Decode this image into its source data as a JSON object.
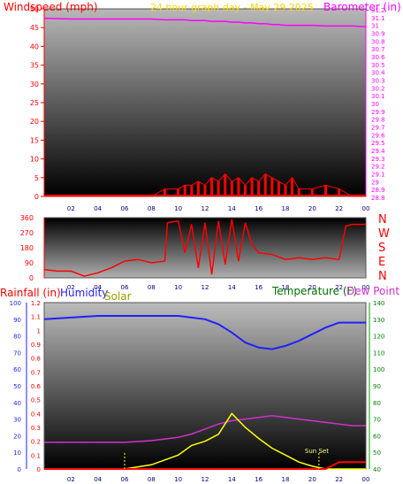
{
  "top": {
    "title_left": "Windspeed (mph)",
    "title_center": "24 hour graph day - May 29 2025",
    "title_right": "Barometer (in)",
    "windspeed_ticks": [
      "0",
      "5",
      "10",
      "15",
      "20",
      "25",
      "30",
      "35",
      "40",
      "45",
      "50"
    ],
    "baro_ticks": [
      "28.8",
      "28.9",
      "29",
      "29.1",
      "29.2",
      "29.3",
      "29.4",
      "29.5",
      "29.6",
      "29.7",
      "29.8",
      "29.9",
      "30",
      "30.1",
      "30.2",
      "30.3",
      "30.4",
      "30.5",
      "30.6",
      "30.7",
      "30.8",
      "30.9",
      "31",
      "31.1",
      "31.2"
    ],
    "time_ticks": [
      "02",
      "04",
      "06",
      "08",
      "10",
      "12",
      "14",
      "16",
      "18",
      "20",
      "22",
      "00"
    ]
  },
  "mid": {
    "dir_ticks": [
      "0",
      "90",
      "180",
      "270",
      "360"
    ],
    "compass": [
      "N",
      "W",
      "S",
      "E",
      "N"
    ],
    "time_ticks": [
      "02",
      "04",
      "06",
      "08",
      "10",
      "12",
      "14",
      "16",
      "18",
      "20",
      "22",
      "00"
    ]
  },
  "bottom": {
    "title_rain": "Rainfall (in)",
    "title_humidity": "Humidity",
    "title_solar": "Solar",
    "title_temp": "Temperature (F)",
    "title_dew": "Dew Point (",
    "humidity_ticks": [
      "0",
      "10",
      "20",
      "30",
      "40",
      "50",
      "60",
      "70",
      "80",
      "90",
      "100"
    ],
    "rain_ticks": [
      "0",
      "0.1",
      "0.2",
      "0.3",
      "0.4",
      "0.5",
      "0.6",
      "0.7",
      "0.8",
      "0.9",
      "1",
      "1.1",
      "1.2"
    ],
    "temp_ticks": [
      "40",
      "50",
      "60",
      "70",
      "80",
      "90",
      "100",
      "110",
      "120",
      "130",
      "140"
    ],
    "sunset_label": "Sun Set",
    "time_ticks": [
      "02",
      "04",
      "06",
      "08",
      "10",
      "12",
      "14",
      "16",
      "18",
      "20",
      "22",
      "00"
    ]
  },
  "colors": {
    "windspeed": "#ff0000",
    "barometer": "#ff00ff",
    "title_center": "#ffd700",
    "direction": "#ff0000",
    "humidity": "#2020ff",
    "solar": "#ffff00",
    "temperature": "#00b000",
    "dewpoint": "#d030d0",
    "rainfall": "#ff0000",
    "temp_title": "#007000",
    "solar_title": "#9a9a00"
  },
  "chart_data": [
    {
      "type": "line",
      "title": "24 hour graph day - May 29 2025",
      "ylabel": "Windspeed (mph)",
      "y2label": "Barometer (in)",
      "ylim": [
        0,
        50
      ],
      "y2lim": [
        28.8,
        31.2
      ],
      "x_hours": [
        0,
        2,
        4,
        6,
        8,
        9,
        10,
        10.5,
        11,
        11.5,
        12,
        12.5,
        13,
        13.5,
        14,
        14.5,
        15,
        15.5,
        16,
        16.5,
        17,
        17.5,
        18,
        18.5,
        19,
        20,
        21,
        22,
        23,
        24
      ],
      "series": [
        {
          "name": "Barometer (in)",
          "values": [
            31.08,
            31.07,
            31.07,
            31.07,
            31.07,
            31.06,
            31.06,
            31.06,
            31.05,
            31.05,
            31.05,
            31.04,
            31.04,
            31.04,
            31.03,
            31.03,
            31.02,
            31.02,
            31.01,
            31.01,
            31.0,
            31.0,
            30.99,
            30.99,
            30.99,
            30.99,
            30.98,
            30.98,
            30.98,
            30.97
          ]
        },
        {
          "name": "Windspeed (mph)",
          "values": [
            0,
            0,
            0,
            0,
            0,
            2,
            2,
            3,
            3,
            4,
            3,
            5,
            4,
            6,
            4,
            5,
            3,
            5,
            4,
            6,
            5,
            4,
            3,
            5,
            2,
            2,
            3,
            2,
            0,
            0
          ]
        }
      ]
    },
    {
      "type": "line",
      "ylabel": "Wind direction",
      "ylim": [
        0,
        360
      ],
      "x_hours": [
        0,
        1,
        2,
        3,
        4,
        5,
        6,
        7,
        8,
        9,
        9.2,
        10,
        10.5,
        11,
        11.5,
        12,
        12.5,
        13,
        13.5,
        14,
        14.5,
        15,
        15.5,
        16,
        17,
        18,
        19,
        20,
        21,
        22,
        22.5,
        23,
        24
      ],
      "series": [
        {
          "name": "Wind direction",
          "values": [
            50,
            40,
            40,
            10,
            30,
            60,
            100,
            110,
            90,
            100,
            330,
            340,
            150,
            320,
            60,
            330,
            20,
            340,
            80,
            350,
            100,
            330,
            200,
            150,
            140,
            110,
            120,
            110,
            120,
            110,
            310,
            320,
            320
          ]
        }
      ]
    },
    {
      "type": "line",
      "ylabel": "Humidity",
      "ylim": [
        0,
        100
      ],
      "y_left2_label": "Rainfall (in)",
      "y_left2_lim": [
        0,
        1.2
      ],
      "y2label": "Temperature (F)",
      "y2lim": [
        40,
        140
      ],
      "x_hours": [
        0,
        2,
        4,
        6,
        8,
        10,
        11,
        12,
        13,
        14,
        15,
        16,
        17,
        18,
        19,
        20,
        21,
        22,
        23,
        24
      ],
      "series": [
        {
          "name": "Humidity",
          "values": [
            90,
            91,
            92,
            92,
            92,
            92,
            91,
            90,
            87,
            82,
            76,
            73,
            72,
            74,
            77,
            81,
            85,
            88,
            88,
            88
          ]
        },
        {
          "name": "Temperature (F)",
          "values": [
            56,
            56,
            56,
            56,
            57,
            59,
            61,
            64,
            67,
            69,
            70,
            71,
            72,
            71,
            70,
            69,
            68,
            67,
            66,
            66
          ]
        },
        {
          "name": "Solar",
          "values": [
            0,
            0,
            0,
            0,
            0.03,
            0.1,
            0.17,
            0.2,
            0.25,
            0.4,
            0.3,
            0.22,
            0.15,
            0.1,
            0.05,
            0.02,
            0,
            0,
            0,
            0
          ]
        },
        {
          "name": "Rainfall (in)",
          "values": [
            0,
            0,
            0,
            0,
            0,
            0,
            0,
            0,
            0,
            0,
            0,
            0,
            0,
            0,
            0,
            0,
            0,
            0.05,
            0.05,
            0.05
          ]
        }
      ]
    }
  ]
}
